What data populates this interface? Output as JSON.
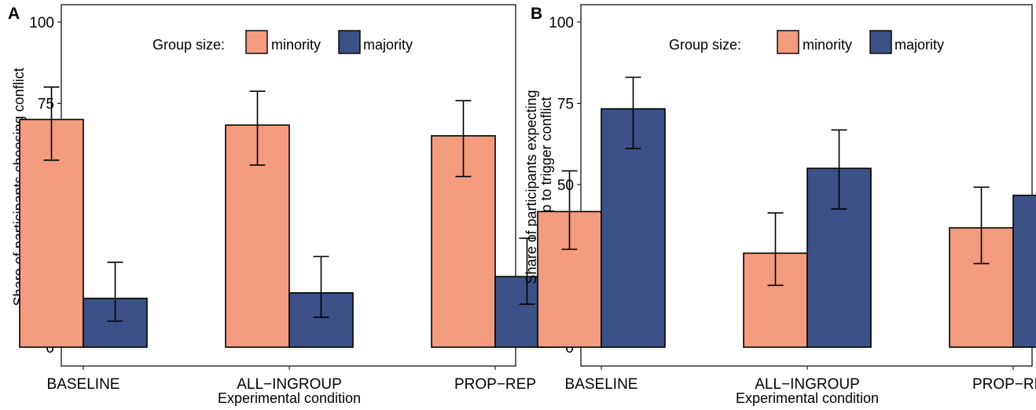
{
  "chart_data": [
    {
      "panel": "A",
      "type": "bar",
      "categories": [
        "BASELINE",
        "ALL−INGROUP",
        "PROP−REP"
      ],
      "series": [
        {
          "name": "minority",
          "color": "#f29b7f",
          "values": [
            70,
            68.3,
            65
          ],
          "ci_low": [
            57.5,
            56,
            52.5
          ],
          "ci_high": [
            80,
            78.7,
            75.8
          ]
        },
        {
          "name": "majority",
          "color": "#3c5186",
          "values": [
            15,
            16.7,
            21.7
          ],
          "ci_low": [
            8,
            9.2,
            13.2
          ],
          "ci_high": [
            26.1,
            27.9,
            33.5
          ]
        }
      ],
      "legend_title": "Group size:",
      "legend_position": "top",
      "xlabel": "Experimental condition",
      "ylabel": "Share of participants choosing conflict",
      "ylabel_lines": [
        "Share of participants choosing conflict"
      ],
      "ylim": [
        0,
        100
      ],
      "yticks": [
        0,
        25,
        50,
        75,
        100
      ],
      "grid": false
    },
    {
      "panel": "B",
      "type": "bar",
      "categories": [
        "BASELINE",
        "ALL−INGROUP",
        "PROP−REP"
      ],
      "series": [
        {
          "name": "minority",
          "color": "#f29b7f",
          "values": [
            41.7,
            28.9,
            36.7
          ],
          "ci_low": [
            30.1,
            19,
            25.7
          ],
          "ci_high": [
            54.2,
            41.3,
            49.2
          ]
        },
        {
          "name": "majority",
          "color": "#3c5186",
          "values": [
            73.3,
            55,
            46.7
          ],
          "ci_low": [
            61.1,
            42.5,
            34.5
          ],
          "ci_high": [
            83,
            66.8,
            59.1
          ]
        }
      ],
      "legend_title": "Group size:",
      "legend_position": "top",
      "xlabel": "Experimental condition",
      "ylabel": "Share of participants expecting other group to trigger conflict",
      "ylabel_lines": [
        "Share of participants expecting",
        "other group to trigger conflict"
      ],
      "ylim": [
        0,
        100
      ],
      "yticks": [
        0,
        25,
        50,
        75,
        100
      ],
      "grid": false
    }
  ]
}
